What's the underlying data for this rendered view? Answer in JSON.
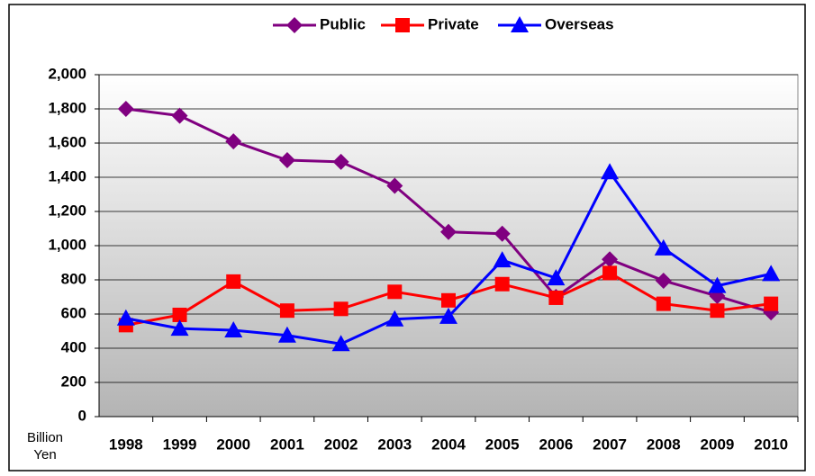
{
  "chart_data": {
    "type": "line",
    "y_label": "Billion Yen",
    "categories": [
      "1998",
      "1999",
      "2000",
      "2001",
      "2002",
      "2003",
      "2004",
      "2005",
      "2006",
      "2007",
      "2008",
      "2009",
      "2010"
    ],
    "series": [
      {
        "name": "Public",
        "color": "#800080",
        "marker": "diamond",
        "values": [
          1800,
          1760,
          1610,
          1500,
          1490,
          1350,
          1080,
          1070,
          700,
          920,
          795,
          705,
          610
        ]
      },
      {
        "name": "Private",
        "color": "#ff0000",
        "marker": "square",
        "values": [
          535,
          595,
          790,
          620,
          630,
          730,
          680,
          775,
          695,
          840,
          660,
          620,
          660
        ]
      },
      {
        "name": "Overseas",
        "color": "#0000ff",
        "marker": "triangle",
        "values": [
          575,
          515,
          505,
          475,
          425,
          570,
          585,
          915,
          810,
          1430,
          985,
          765,
          835
        ]
      }
    ],
    "ylim": [
      0,
      2000
    ],
    "yticks": [
      0,
      200,
      400,
      600,
      800,
      {
        "value": 1000,
        "label": "1,000"
      },
      {
        "value": 1200,
        "label": "1,200"
      },
      {
        "value": 1400,
        "label": "1,400"
      },
      {
        "value": 1600,
        "label": "1,600"
      },
      {
        "value": 1800,
        "label": "1,800"
      },
      {
        "value": 2000,
        "label": "2,000"
      }
    ],
    "grid": true,
    "legend": "top"
  }
}
